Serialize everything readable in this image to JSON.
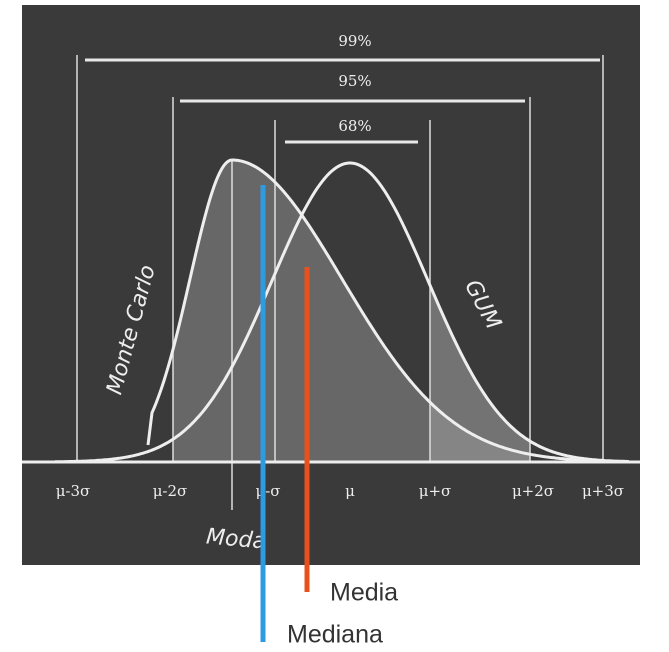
{
  "intervals": [
    "99%",
    "95%",
    "68%"
  ],
  "curves": {
    "monte_carlo": "Monte Carlo",
    "gum": "GUM"
  },
  "axis_labels": [
    "μ-3σ",
    "μ-2σ",
    "μ-σ",
    "μ",
    "μ+σ",
    "μ+2σ",
    "μ+3σ"
  ],
  "markers": {
    "moda": "Moda",
    "media": "Media",
    "mediana": "Mediana"
  }
}
